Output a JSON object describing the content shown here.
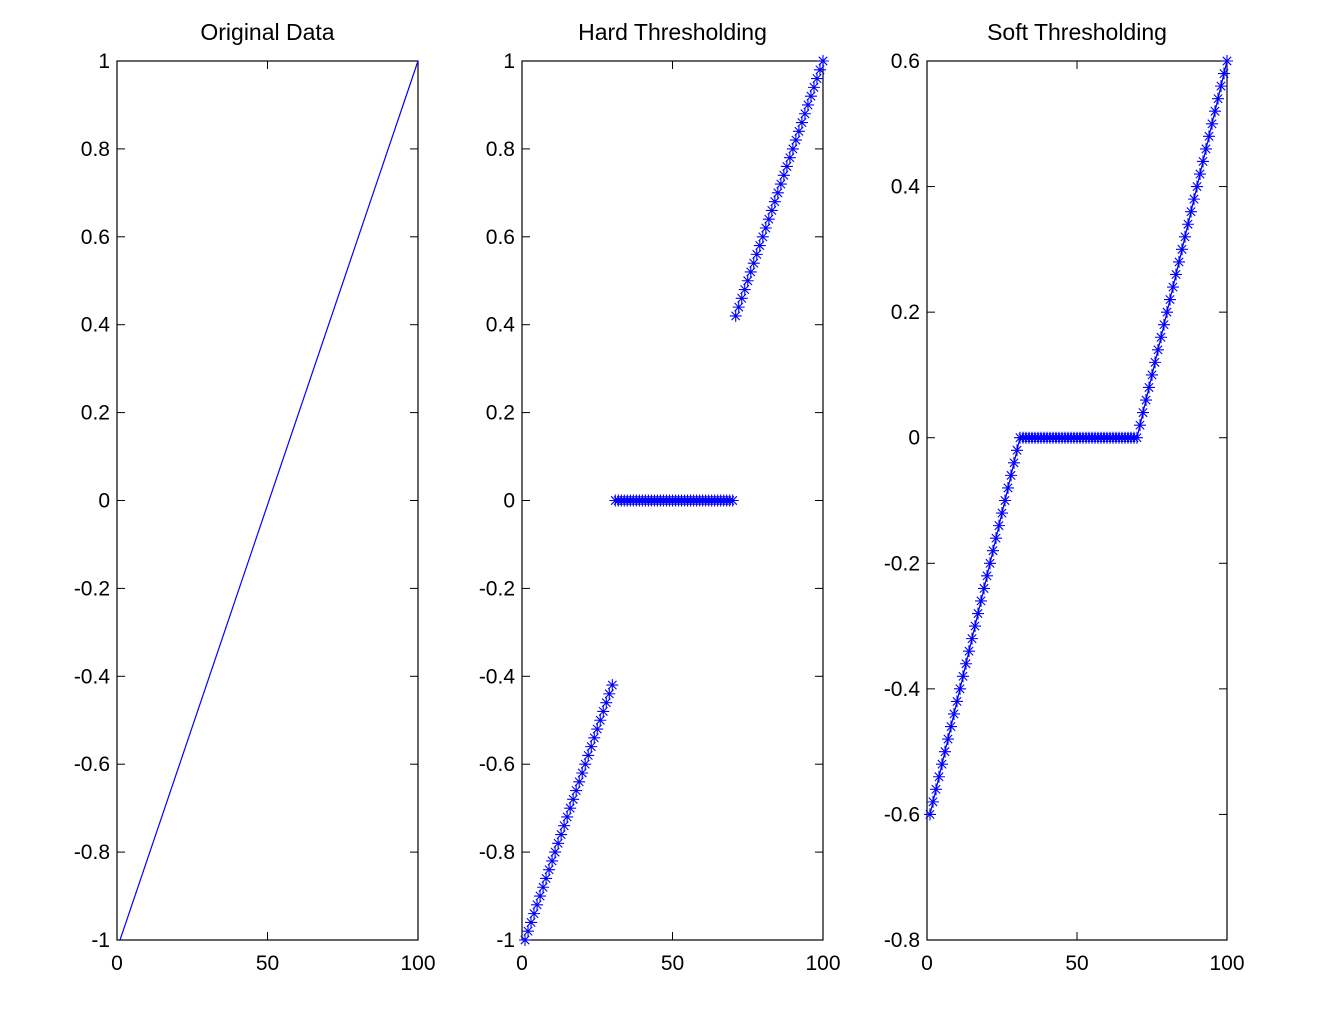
{
  "chart_data": [
    {
      "type": "line",
      "title": "Original Data",
      "xlabel": "",
      "ylabel": "",
      "xlim": [
        0,
        100
      ],
      "ylim": [
        -1,
        1
      ],
      "xticks": [
        0,
        50,
        100
      ],
      "yticks": [
        -1,
        -0.8,
        -0.6,
        -0.4,
        -0.2,
        0,
        0.2,
        0.4,
        0.6,
        0.8,
        1
      ],
      "xtick_labels": [
        "0",
        "50",
        "100"
      ],
      "ytick_labels": [
        "-1",
        "-0.8",
        "-0.6",
        "-0.4",
        "-0.2",
        "0",
        "0.2",
        "0.4",
        "0.6",
        "0.8",
        "1"
      ],
      "grid": false,
      "series": [
        {
          "marker": "none",
          "linestyle": "solid",
          "color": "#0000ff",
          "x": [
            1,
            100
          ],
          "y": [
            -1,
            1
          ]
        }
      ]
    },
    {
      "type": "scatter",
      "title": "Hard Thresholding",
      "xlabel": "",
      "ylabel": "",
      "xlim": [
        0,
        100
      ],
      "ylim": [
        -1,
        1
      ],
      "xticks": [
        0,
        50,
        100
      ],
      "yticks": [
        -1,
        -0.8,
        -0.6,
        -0.4,
        -0.2,
        0,
        0.2,
        0.4,
        0.6,
        0.8,
        1
      ],
      "xtick_labels": [
        "0",
        "50",
        "100"
      ],
      "ytick_labels": [
        "-1",
        "-0.8",
        "-0.6",
        "-0.4",
        "-0.2",
        "0",
        "0.2",
        "0.4",
        "0.6",
        "0.8",
        "1"
      ],
      "grid": false,
      "series": [
        {
          "marker": "*",
          "linestyle": "none",
          "color": "#0000ff",
          "x": [
            1,
            2,
            3,
            4,
            5,
            6,
            7,
            8,
            9,
            10,
            11,
            12,
            13,
            14,
            15,
            16,
            17,
            18,
            19,
            20,
            21,
            22,
            23,
            24,
            25,
            26,
            27,
            28,
            29,
            30,
            31,
            32,
            33,
            34,
            35,
            36,
            37,
            38,
            39,
            40,
            41,
            42,
            43,
            44,
            45,
            46,
            47,
            48,
            49,
            50,
            51,
            52,
            53,
            54,
            55,
            56,
            57,
            58,
            59,
            60,
            61,
            62,
            63,
            64,
            65,
            66,
            67,
            68,
            69,
            70,
            71,
            72,
            73,
            74,
            75,
            76,
            77,
            78,
            79,
            80,
            81,
            82,
            83,
            84,
            85,
            86,
            87,
            88,
            89,
            90,
            91,
            92,
            93,
            94,
            95,
            96,
            97,
            98,
            99,
            100
          ],
          "y": [
            -1,
            -0.98,
            -0.96,
            -0.94,
            -0.92,
            -0.9,
            -0.88,
            -0.86,
            -0.84,
            -0.82,
            -0.8,
            -0.78,
            -0.76,
            -0.74,
            -0.72,
            -0.7,
            -0.68,
            -0.66,
            -0.64,
            -0.62,
            -0.6,
            -0.58,
            -0.56,
            -0.54,
            -0.52,
            -0.5,
            -0.48,
            -0.46,
            -0.44,
            -0.42,
            0,
            0,
            0,
            0,
            0,
            0,
            0,
            0,
            0,
            0,
            0,
            0,
            0,
            0,
            0,
            0,
            0,
            0,
            0,
            0,
            0,
            0,
            0,
            0,
            0,
            0,
            0,
            0,
            0,
            0,
            0,
            0,
            0,
            0,
            0,
            0,
            0,
            0,
            0,
            0,
            0.42,
            0.44,
            0.46,
            0.48,
            0.5,
            0.52,
            0.54,
            0.56,
            0.58,
            0.6,
            0.62,
            0.64,
            0.66,
            0.68,
            0.7,
            0.72,
            0.74,
            0.76,
            0.78,
            0.8,
            0.82,
            0.84,
            0.86,
            0.88,
            0.9,
            0.92,
            0.94,
            0.96,
            0.98,
            1
          ]
        }
      ]
    },
    {
      "type": "scatter",
      "title": "Soft Thresholding",
      "xlabel": "",
      "ylabel": "",
      "xlim": [
        0,
        100
      ],
      "ylim": [
        -0.8,
        0.6
      ],
      "xticks": [
        0,
        50,
        100
      ],
      "yticks": [
        -0.8,
        -0.6,
        -0.4,
        -0.2,
        0,
        0.2,
        0.4,
        0.6
      ],
      "xtick_labels": [
        "0",
        "50",
        "100"
      ],
      "ytick_labels": [
        "-0.8",
        "-0.6",
        "-0.4",
        "-0.2",
        "0",
        "0.2",
        "0.4",
        "0.6"
      ],
      "grid": false,
      "series": [
        {
          "marker": "*",
          "linestyle": "solid",
          "color": "#0000ff",
          "x": [
            1,
            2,
            3,
            4,
            5,
            6,
            7,
            8,
            9,
            10,
            11,
            12,
            13,
            14,
            15,
            16,
            17,
            18,
            19,
            20,
            21,
            22,
            23,
            24,
            25,
            26,
            27,
            28,
            29,
            30,
            31,
            32,
            33,
            34,
            35,
            36,
            37,
            38,
            39,
            40,
            41,
            42,
            43,
            44,
            45,
            46,
            47,
            48,
            49,
            50,
            51,
            52,
            53,
            54,
            55,
            56,
            57,
            58,
            59,
            60,
            61,
            62,
            63,
            64,
            65,
            66,
            67,
            68,
            69,
            70,
            71,
            72,
            73,
            74,
            75,
            76,
            77,
            78,
            79,
            80,
            81,
            82,
            83,
            84,
            85,
            86,
            87,
            88,
            89,
            90,
            91,
            92,
            93,
            94,
            95,
            96,
            97,
            98,
            99,
            100
          ],
          "y": [
            -0.6,
            -0.58,
            -0.56,
            -0.54,
            -0.52,
            -0.5,
            -0.48,
            -0.46,
            -0.44,
            -0.42,
            -0.4,
            -0.38,
            -0.36,
            -0.34,
            -0.32,
            -0.3,
            -0.28,
            -0.26,
            -0.24,
            -0.22,
            -0.2,
            -0.18,
            -0.16,
            -0.14,
            -0.12,
            -0.1,
            -0.08,
            -0.06,
            -0.04,
            -0.02,
            0,
            0,
            0,
            0,
            0,
            0,
            0,
            0,
            0,
            0,
            0,
            0,
            0,
            0,
            0,
            0,
            0,
            0,
            0,
            0,
            0,
            0,
            0,
            0,
            0,
            0,
            0,
            0,
            0,
            0,
            0,
            0,
            0,
            0,
            0,
            0,
            0,
            0,
            0,
            0,
            0.02,
            0.04,
            0.06,
            0.08,
            0.1,
            0.12,
            0.14,
            0.16,
            0.18,
            0.2,
            0.22,
            0.24,
            0.26,
            0.28,
            0.3,
            0.32,
            0.34,
            0.36,
            0.38,
            0.4,
            0.42,
            0.44,
            0.46,
            0.48,
            0.5,
            0.52,
            0.54,
            0.56,
            0.58,
            0.6
          ]
        }
      ]
    }
  ]
}
